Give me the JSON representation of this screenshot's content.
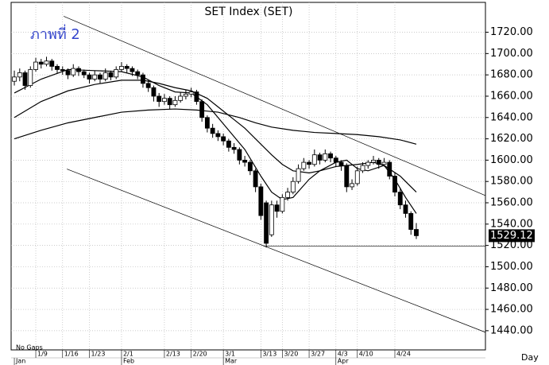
{
  "chart_data": {
    "type": "candlestick",
    "title": "SET Index (SET)",
    "annotation": "ภาพที่ 2",
    "note": "No Gaps",
    "x_axis_label": "Day",
    "xlim": [
      -0.6,
      87.9
    ],
    "ylim": [
      1422,
      1748
    ],
    "yticks": [
      {
        "value": 1440,
        "label": "1440.00"
      },
      {
        "value": 1460,
        "label": "1460.00"
      },
      {
        "value": 1480,
        "label": "1480.00"
      },
      {
        "value": 1500,
        "label": "1500.00"
      },
      {
        "value": 1520,
        "label": "1520.00"
      },
      {
        "value": 1540,
        "label": "1540.00"
      },
      {
        "value": 1560,
        "label": "1560.00"
      },
      {
        "value": 1580,
        "label": "1580.00"
      },
      {
        "value": 1600,
        "label": "1600.00"
      },
      {
        "value": 1620,
        "label": "1620.00"
      },
      {
        "value": 1640,
        "label": "1640.00"
      },
      {
        "value": 1660,
        "label": "1660.00"
      },
      {
        "value": 1680,
        "label": "1680.00"
      },
      {
        "value": 1700,
        "label": "1700.00"
      },
      {
        "value": 1720,
        "label": "1720.00"
      }
    ],
    "xticks": [
      {
        "value": 4,
        "label": "1/9"
      },
      {
        "value": 9,
        "label": "1/16"
      },
      {
        "value": 14,
        "label": "1/23"
      },
      {
        "value": 20,
        "label": "2/1"
      },
      {
        "value": 28,
        "label": "2/13"
      },
      {
        "value": 33,
        "label": "2/20"
      },
      {
        "value": 39,
        "label": "3/1"
      },
      {
        "value": 46,
        "label": "3/13"
      },
      {
        "value": 50,
        "label": "3/20"
      },
      {
        "value": 55,
        "label": "3/27"
      },
      {
        "value": 60,
        "label": "4/3"
      },
      {
        "value": 64,
        "label": "4/10"
      },
      {
        "value": 71,
        "label": "4/24"
      }
    ],
    "month_ticks": [
      {
        "value": 0,
        "label": "Jan"
      },
      {
        "value": 20,
        "label": "Feb"
      },
      {
        "value": 39,
        "label": "Mar"
      },
      {
        "value": 60,
        "label": "Apr"
      }
    ],
    "grid": true,
    "open": [
      1674,
      1678,
      1682,
      1670,
      1685,
      1692,
      1690,
      1693,
      1688,
      1685,
      1684,
      1680,
      1686,
      1683,
      1680,
      1676,
      1680,
      1676,
      1682,
      1678,
      1685,
      1688,
      1686,
      1683,
      1680,
      1672,
      1668,
      1660,
      1655,
      1658,
      1652,
      1656,
      1660,
      1662,
      1664,
      1655,
      1640,
      1630,
      1625,
      1622,
      1618,
      1612,
      1610,
      1600,
      1598,
      1590,
      1575,
      1560,
      1530,
      1558,
      1552,
      1565,
      1570,
      1580,
      1592,
      1598,
      1596,
      1605,
      1600,
      1606,
      1602,
      1598,
      1595,
      1575,
      1578,
      1590,
      1595,
      1598,
      1600,
      1596,
      1598,
      1585,
      1570,
      1558,
      1550,
      1535
    ],
    "high": [
      1684,
      1686,
      1684,
      1688,
      1696,
      1695,
      1697,
      1695,
      1690,
      1688,
      1686,
      1690,
      1688,
      1685,
      1682,
      1684,
      1682,
      1686,
      1684,
      1688,
      1692,
      1690,
      1688,
      1685,
      1682,
      1675,
      1670,
      1663,
      1662,
      1660,
      1660,
      1664,
      1666,
      1668,
      1666,
      1657,
      1642,
      1634,
      1628,
      1625,
      1620,
      1616,
      1612,
      1604,
      1600,
      1592,
      1578,
      1562,
      1562,
      1562,
      1568,
      1574,
      1584,
      1596,
      1602,
      1600,
      1610,
      1607,
      1610,
      1608,
      1604,
      1600,
      1597,
      1582,
      1594,
      1598,
      1600,
      1604,
      1602,
      1602,
      1600,
      1588,
      1574,
      1562,
      1552,
      1541
    ],
    "low": [
      1670,
      1674,
      1666,
      1668,
      1683,
      1686,
      1688,
      1684,
      1681,
      1680,
      1676,
      1678,
      1679,
      1677,
      1672,
      1674,
      1672,
      1674,
      1675,
      1676,
      1683,
      1682,
      1679,
      1676,
      1668,
      1664,
      1655,
      1650,
      1652,
      1648,
      1650,
      1654,
      1657,
      1659,
      1652,
      1636,
      1626,
      1621,
      1618,
      1614,
      1608,
      1606,
      1596,
      1594,
      1586,
      1570,
      1544,
      1518,
      1528,
      1546,
      1550,
      1562,
      1568,
      1578,
      1590,
      1592,
      1594,
      1596,
      1598,
      1598,
      1594,
      1590,
      1570,
      1572,
      1576,
      1588,
      1592,
      1596,
      1592,
      1594,
      1582,
      1566,
      1554,
      1546,
      1530,
      1526
    ],
    "close": [
      1678,
      1682,
      1670,
      1685,
      1692,
      1690,
      1693,
      1688,
      1685,
      1684,
      1680,
      1686,
      1683,
      1680,
      1676,
      1680,
      1676,
      1682,
      1678,
      1685,
      1688,
      1686,
      1683,
      1680,
      1672,
      1668,
      1660,
      1655,
      1658,
      1652,
      1656,
      1660,
      1662,
      1664,
      1655,
      1640,
      1630,
      1625,
      1622,
      1618,
      1612,
      1610,
      1600,
      1598,
      1590,
      1575,
      1548,
      1522,
      1558,
      1552,
      1565,
      1570,
      1580,
      1592,
      1598,
      1596,
      1605,
      1600,
      1606,
      1602,
      1598,
      1595,
      1575,
      1578,
      1590,
      1595,
      1598,
      1600,
      1596,
      1598,
      1585,
      1570,
      1558,
      1550,
      1535,
      1529.12
    ],
    "color": "#000000",
    "series": [
      {
        "x": [
          0,
          5,
          10,
          15,
          20,
          24,
          27,
          30,
          33,
          36,
          38,
          41,
          43,
          46,
          48,
          50,
          52,
          55,
          57,
          60,
          62,
          64,
          66,
          69,
          71,
          73,
          75
        ],
        "values": [
          1663,
          1676,
          1685,
          1684,
          1683,
          1678,
          1670,
          1664,
          1663,
          1652,
          1640,
          1622,
          1610,
          1585,
          1570,
          1563,
          1565,
          1582,
          1590,
          1598,
          1600,
          1592,
          1590,
          1595,
          1582,
          1565,
          1550
        ],
        "color": "#000000"
      },
      {
        "x": [
          0,
          5,
          10,
          15,
          20,
          24,
          27,
          30,
          33,
          36,
          38,
          41,
          43,
          46,
          48,
          50,
          52,
          55,
          57,
          60,
          62,
          64,
          67,
          69,
          72,
          75
        ],
        "values": [
          1640,
          1655,
          1665,
          1671,
          1675,
          1675,
          1672,
          1668,
          1665,
          1658,
          1650,
          1638,
          1630,
          1615,
          1605,
          1596,
          1590,
          1588,
          1590,
          1594,
          1595,
          1596,
          1598,
          1595,
          1585,
          1570
        ],
        "color": "#000000"
      },
      {
        "x": [
          0,
          5,
          10,
          15,
          20,
          25,
          30,
          34,
          38,
          42,
          45,
          48,
          52,
          56,
          60,
          64,
          68,
          72,
          75
        ],
        "values": [
          1620,
          1628,
          1635,
          1640,
          1645,
          1647,
          1648,
          1647,
          1645,
          1640,
          1635,
          1631,
          1628,
          1626,
          1625,
          1624,
          1622,
          1619,
          1615
        ],
        "color": "#000000"
      }
    ],
    "trendlines": [
      {
        "x": [
          9.2,
          87.9
        ],
        "values": [
          1735,
          1566.8
        ]
      },
      {
        "x": [
          9.8,
          87.9
        ],
        "values": [
          1591.7,
          1438.5
        ]
      },
      {
        "x": [
          46.5,
          87.9
        ],
        "values": [
          1519.2,
          1519.2
        ]
      }
    ]
  }
}
